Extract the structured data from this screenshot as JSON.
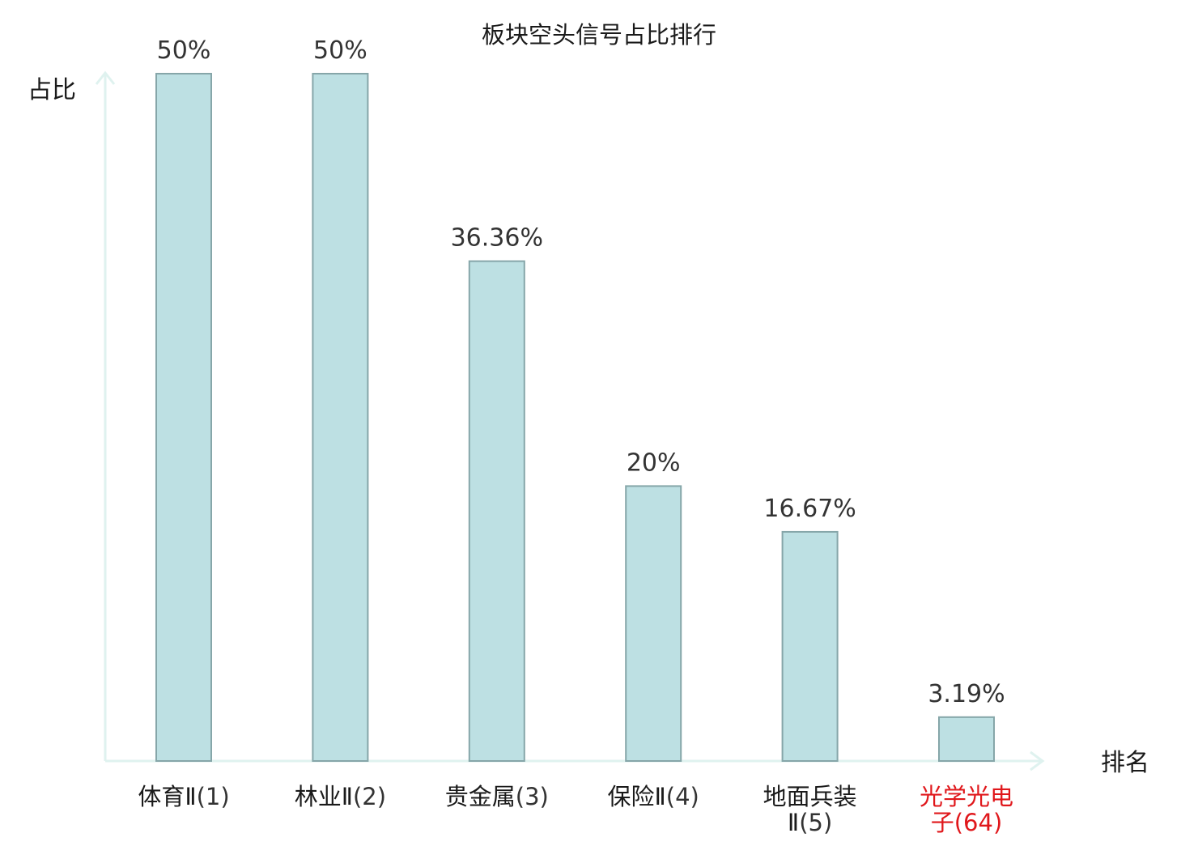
{
  "chart_data": {
    "type": "bar",
    "title": "板块空头信号占比排行",
    "ylabel": "占比",
    "xlabel": "排名",
    "ylim": [
      0,
      50
    ],
    "grid": false,
    "legend": "none",
    "categories": [
      {
        "lines": [
          {
            "name": "体育Ⅱ",
            "rank": "(1)"
          }
        ],
        "highlight": false
      },
      {
        "lines": [
          {
            "name": "林业Ⅱ",
            "rank": "(2)"
          }
        ],
        "highlight": false
      },
      {
        "lines": [
          {
            "name": "贵金属",
            "rank": "(3)"
          }
        ],
        "highlight": false
      },
      {
        "lines": [
          {
            "name": "保险Ⅱ",
            "rank": "(4)"
          }
        ],
        "highlight": false
      },
      {
        "lines": [
          {
            "name": "地面兵装",
            "rank": ""
          },
          {
            "name": "Ⅱ",
            "rank": "(5)"
          }
        ],
        "highlight": false
      },
      {
        "lines": [
          {
            "name": "光学光电",
            "rank": ""
          },
          {
            "name": "子",
            "rank": "(64)"
          }
        ],
        "highlight": true
      }
    ],
    "values": [
      50,
      50,
      36.36,
      20,
      16.67,
      3.19
    ],
    "value_labels": [
      "50%",
      "50%",
      "36.36%",
      "20%",
      "16.67%",
      "3.19%"
    ],
    "colors": {
      "bar_fill": "#bde0e3",
      "bar_stroke": "#86a6a9",
      "axis": "#dff2ef",
      "highlight": "#e0171b"
    }
  }
}
